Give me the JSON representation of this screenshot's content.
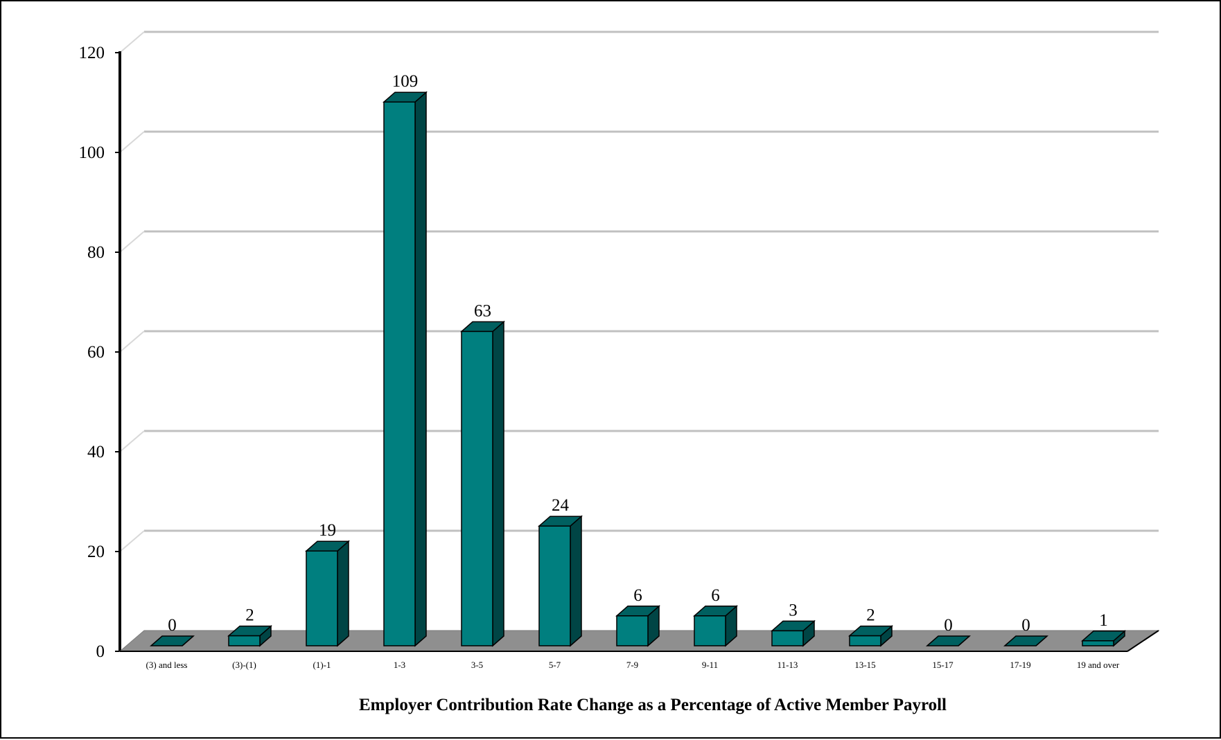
{
  "chart_data": {
    "type": "bar",
    "style": "3d-column",
    "categories": [
      "(3) and less",
      "(3)-(1)",
      "(1)-1",
      "1-3",
      "3-5",
      "5-7",
      "7-9",
      "9-11",
      "11-13",
      "13-15",
      "15-17",
      "17-19",
      "19 and over"
    ],
    "values": [
      0,
      2,
      19,
      109,
      63,
      24,
      6,
      6,
      3,
      2,
      0,
      0,
      1
    ],
    "title": "",
    "xlabel": "Employer Contribution Rate Change as a Percentage of Active Member Payroll",
    "ylabel": "",
    "ylim": [
      0,
      120
    ],
    "yticks": [
      0,
      20,
      40,
      60,
      80,
      100,
      120
    ],
    "grid": true,
    "legend": "none",
    "colors": {
      "bar_front": "#007f7f",
      "bar_side": "#004545",
      "bar_top": "#006060",
      "floor": "#8f8f8f",
      "gridline": "#c0c0c0"
    }
  }
}
